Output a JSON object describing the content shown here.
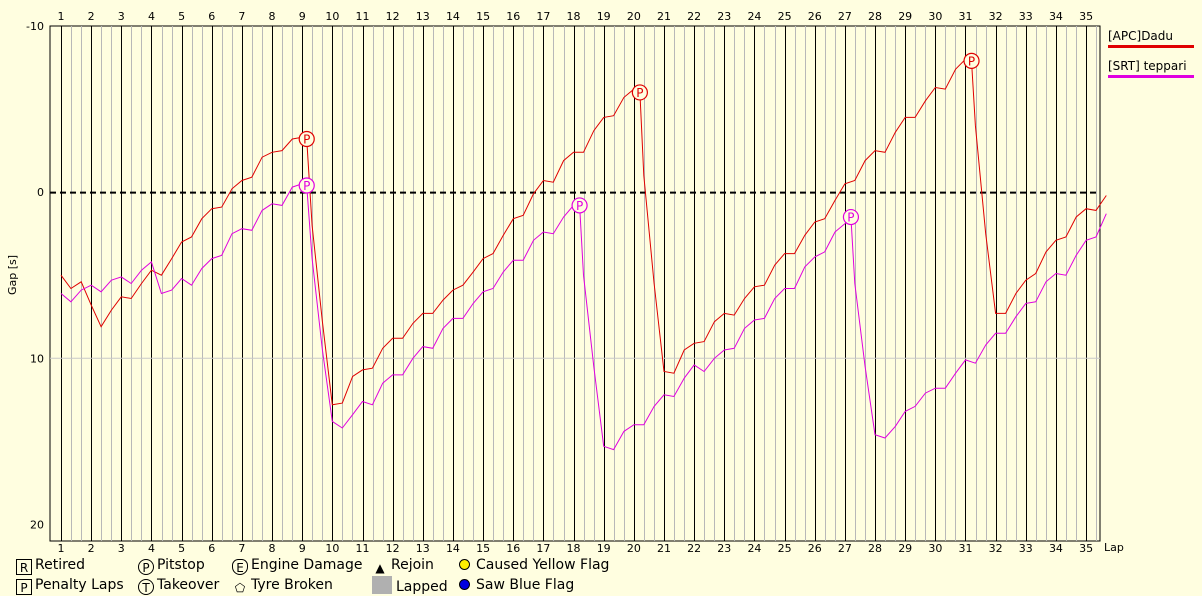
{
  "chart_data": {
    "type": "line",
    "xlabel": "Lap",
    "ylabel": "Gap [s]",
    "x_ticks": [
      1,
      2,
      3,
      4,
      5,
      6,
      7,
      8,
      9,
      10,
      11,
      12,
      13,
      14,
      15,
      16,
      17,
      18,
      19,
      20,
      21,
      22,
      23,
      24,
      25,
      26,
      27,
      28,
      29,
      30,
      31,
      32,
      33,
      34,
      35
    ],
    "y_ticks": [
      -10,
      0,
      10,
      20
    ],
    "ylim": [
      -10,
      21
    ],
    "y_inverted": true,
    "xlim": [
      0.5,
      35.9
    ],
    "reference_line": 0,
    "series": [
      {
        "name": "[APC]Dadu",
        "color": "#e00000",
        "points": [
          [
            1,
            5.0
          ],
          [
            1.33,
            5.8
          ],
          [
            1.67,
            5.4
          ],
          [
            2,
            6.8
          ],
          [
            2.33,
            8.1
          ],
          [
            2.67,
            7.1
          ],
          [
            3,
            6.3
          ],
          [
            3.33,
            6.4
          ],
          [
            3.67,
            5.5
          ],
          [
            4,
            4.7
          ],
          [
            4.33,
            5.0
          ],
          [
            4.67,
            4.0
          ],
          [
            5,
            3.0
          ],
          [
            5.33,
            2.7
          ],
          [
            5.67,
            1.6
          ],
          [
            6,
            1.0
          ],
          [
            6.33,
            0.9
          ],
          [
            6.67,
            -0.2
          ],
          [
            7,
            -0.7
          ],
          [
            7.33,
            -0.9
          ],
          [
            7.67,
            -2.1
          ],
          [
            8,
            -2.4
          ],
          [
            8.33,
            -2.5
          ],
          [
            8.67,
            -3.2
          ],
          [
            9,
            -3.3
          ],
          [
            9.15,
            -3.2
          ],
          [
            9.33,
            2.0
          ],
          [
            9.67,
            7.8
          ],
          [
            10,
            12.8
          ],
          [
            10.33,
            12.7
          ],
          [
            10.67,
            11.1
          ],
          [
            11,
            10.7
          ],
          [
            11.33,
            10.6
          ],
          [
            11.67,
            9.4
          ],
          [
            12,
            8.8
          ],
          [
            12.33,
            8.8
          ],
          [
            12.67,
            7.9
          ],
          [
            13,
            7.3
          ],
          [
            13.33,
            7.3
          ],
          [
            13.67,
            6.5
          ],
          [
            14,
            5.9
          ],
          [
            14.33,
            5.6
          ],
          [
            14.67,
            4.8
          ],
          [
            15,
            4.0
          ],
          [
            15.33,
            3.7
          ],
          [
            15.67,
            2.6
          ],
          [
            16,
            1.6
          ],
          [
            16.33,
            1.4
          ],
          [
            16.67,
            0.1
          ],
          [
            17,
            -0.7
          ],
          [
            17.33,
            -0.6
          ],
          [
            17.67,
            -1.9
          ],
          [
            18,
            -2.4
          ],
          [
            18.33,
            -2.4
          ],
          [
            18.67,
            -3.7
          ],
          [
            19,
            -4.5
          ],
          [
            19.33,
            -4.6
          ],
          [
            19.67,
            -5.7
          ],
          [
            20,
            -6.2
          ],
          [
            20.2,
            -6.0
          ],
          [
            20.33,
            -1.0
          ],
          [
            20.67,
            5.5
          ],
          [
            21,
            10.8
          ],
          [
            21.33,
            10.9
          ],
          [
            21.67,
            9.5
          ],
          [
            22,
            9.1
          ],
          [
            22.33,
            9.0
          ],
          [
            22.67,
            7.8
          ],
          [
            23,
            7.3
          ],
          [
            23.33,
            7.4
          ],
          [
            23.67,
            6.4
          ],
          [
            24,
            5.7
          ],
          [
            24.33,
            5.6
          ],
          [
            24.67,
            4.4
          ],
          [
            25,
            3.7
          ],
          [
            25.33,
            3.7
          ],
          [
            25.67,
            2.6
          ],
          [
            26,
            1.8
          ],
          [
            26.33,
            1.6
          ],
          [
            26.67,
            0.5
          ],
          [
            27,
            -0.5
          ],
          [
            27.33,
            -0.7
          ],
          [
            27.67,
            -1.9
          ],
          [
            28,
            -2.5
          ],
          [
            28.33,
            -2.4
          ],
          [
            28.67,
            -3.6
          ],
          [
            29,
            -4.5
          ],
          [
            29.33,
            -4.5
          ],
          [
            29.67,
            -5.5
          ],
          [
            30,
            -6.3
          ],
          [
            30.33,
            -6.2
          ],
          [
            30.67,
            -7.4
          ],
          [
            31,
            -8.0
          ],
          [
            31.2,
            -7.9
          ],
          [
            31.33,
            -4.0
          ],
          [
            31.67,
            2.5
          ],
          [
            32,
            7.3
          ],
          [
            32.33,
            7.3
          ],
          [
            32.67,
            6.1
          ],
          [
            33,
            5.3
          ],
          [
            33.33,
            4.9
          ],
          [
            33.67,
            3.6
          ],
          [
            34,
            2.9
          ],
          [
            34.33,
            2.7
          ],
          [
            34.67,
            1.5
          ],
          [
            35,
            1.0
          ],
          [
            35.33,
            1.1
          ],
          [
            35.67,
            0.2
          ]
        ],
        "pitstops": [
          [
            9.15,
            -3.2
          ],
          [
            20.2,
            -6.0
          ],
          [
            31.2,
            -7.9
          ]
        ]
      },
      {
        "name": "[SRT] teppari",
        "color": "#e000e0",
        "points": [
          [
            1,
            6.1
          ],
          [
            1.33,
            6.6
          ],
          [
            1.67,
            5.9
          ],
          [
            2,
            5.6
          ],
          [
            2.33,
            6.0
          ],
          [
            2.67,
            5.3
          ],
          [
            3,
            5.1
          ],
          [
            3.33,
            5.5
          ],
          [
            3.67,
            4.7
          ],
          [
            4,
            4.2
          ],
          [
            4.33,
            6.1
          ],
          [
            4.67,
            5.9
          ],
          [
            5,
            5.2
          ],
          [
            5.33,
            5.6
          ],
          [
            5.67,
            4.6
          ],
          [
            6,
            4.0
          ],
          [
            6.33,
            3.8
          ],
          [
            6.67,
            2.5
          ],
          [
            7,
            2.2
          ],
          [
            7.33,
            2.3
          ],
          [
            7.67,
            1.1
          ],
          [
            8,
            0.7
          ],
          [
            8.33,
            0.8
          ],
          [
            8.67,
            -0.3
          ],
          [
            9,
            -0.5
          ],
          [
            9.15,
            -0.4
          ],
          [
            9.33,
            4.0
          ],
          [
            9.67,
            9.5
          ],
          [
            10,
            13.8
          ],
          [
            10.33,
            14.2
          ],
          [
            10.67,
            13.4
          ],
          [
            11,
            12.6
          ],
          [
            11.33,
            12.8
          ],
          [
            11.67,
            11.5
          ],
          [
            12,
            11.0
          ],
          [
            12.33,
            11.0
          ],
          [
            12.67,
            10.0
          ],
          [
            13,
            9.3
          ],
          [
            13.33,
            9.4
          ],
          [
            13.67,
            8.2
          ],
          [
            14,
            7.6
          ],
          [
            14.33,
            7.6
          ],
          [
            14.67,
            6.7
          ],
          [
            15,
            6.0
          ],
          [
            15.33,
            5.8
          ],
          [
            15.67,
            4.8
          ],
          [
            16,
            4.1
          ],
          [
            16.33,
            4.1
          ],
          [
            16.67,
            2.9
          ],
          [
            17,
            2.4
          ],
          [
            17.33,
            2.5
          ],
          [
            17.67,
            1.5
          ],
          [
            18,
            0.8
          ],
          [
            18.2,
            0.8
          ],
          [
            18.33,
            5.0
          ],
          [
            18.67,
            10.5
          ],
          [
            19,
            15.3
          ],
          [
            19.33,
            15.5
          ],
          [
            19.67,
            14.4
          ],
          [
            20,
            14.0
          ],
          [
            20.33,
            14.0
          ],
          [
            20.67,
            12.9
          ],
          [
            21,
            12.2
          ],
          [
            21.33,
            12.3
          ],
          [
            21.67,
            11.2
          ],
          [
            22,
            10.4
          ],
          [
            22.33,
            10.8
          ],
          [
            22.67,
            10.0
          ],
          [
            23,
            9.5
          ],
          [
            23.33,
            9.4
          ],
          [
            23.67,
            8.2
          ],
          [
            24,
            7.7
          ],
          [
            24.33,
            7.6
          ],
          [
            24.67,
            6.4
          ],
          [
            25,
            5.8
          ],
          [
            25.33,
            5.8
          ],
          [
            25.67,
            4.5
          ],
          [
            26,
            3.9
          ],
          [
            26.33,
            3.6
          ],
          [
            26.67,
            2.4
          ],
          [
            27,
            1.9
          ],
          [
            27.2,
            1.5
          ],
          [
            27.33,
            5.5
          ],
          [
            27.67,
            10.5
          ],
          [
            28,
            14.6
          ],
          [
            28.33,
            14.8
          ],
          [
            28.67,
            14.1
          ],
          [
            29,
            13.2
          ],
          [
            29.33,
            12.9
          ],
          [
            29.67,
            12.1
          ],
          [
            30,
            11.8
          ],
          [
            30.33,
            11.8
          ],
          [
            30.67,
            10.9
          ],
          [
            31,
            10.1
          ],
          [
            31.33,
            10.3
          ],
          [
            31.67,
            9.2
          ],
          [
            32,
            8.5
          ],
          [
            32.33,
            8.5
          ],
          [
            32.67,
            7.5
          ],
          [
            33,
            6.7
          ],
          [
            33.33,
            6.6
          ],
          [
            33.67,
            5.4
          ],
          [
            34,
            4.9
          ],
          [
            34.33,
            5.0
          ],
          [
            34.67,
            3.8
          ],
          [
            35,
            2.9
          ],
          [
            35.33,
            2.7
          ],
          [
            35.67,
            1.3
          ]
        ],
        "pitstops": [
          [
            9.15,
            -0.4
          ],
          [
            18.2,
            0.8
          ],
          [
            27.2,
            1.5
          ]
        ]
      }
    ]
  },
  "legend": {
    "row1": [
      {
        "symbol": "R",
        "label": "Retired"
      },
      {
        "symbol": "P",
        "label": "Pitstop"
      },
      {
        "symbol": "E",
        "label": "Engine Damage"
      },
      {
        "symbol": "▲",
        "label": "Rejoin"
      },
      {
        "symbol": "",
        "label": "Caused Yellow Flag",
        "color": "#ffee00"
      }
    ],
    "row2": [
      {
        "symbol": "P",
        "label": "Penalty Laps"
      },
      {
        "symbol": "T",
        "label": "Takeover"
      },
      {
        "symbol": "⬠",
        "label": "Tyre Broken"
      },
      {
        "symbol": "",
        "label": "Lapped",
        "color": "#b0b0b0"
      },
      {
        "symbol": "",
        "label": "Saw Blue Flag",
        "color": "#0000e0"
      }
    ]
  }
}
